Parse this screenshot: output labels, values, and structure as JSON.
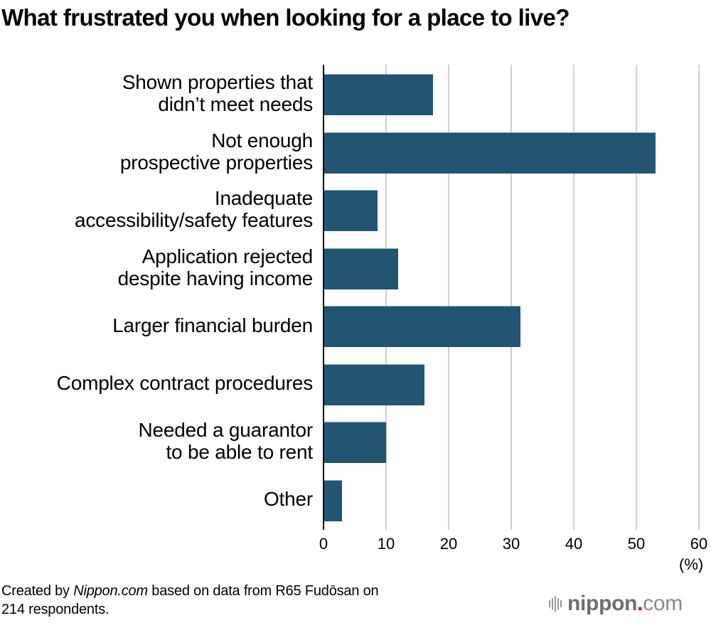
{
  "title": "What frustrated you when looking for a place to live?",
  "chart_data": {
    "type": "bar",
    "orientation": "horizontal",
    "title": "What frustrated you when looking for a place to live?",
    "categories": [
      "Shown properties that didn’t meet needs",
      "Not enough prospective properties",
      "Inadequate accessibility/safety features",
      "Application rejected despite having income",
      "Larger financial burden",
      "Complex contract procedures",
      "Needed a guarantor to be able to rent",
      "Other"
    ],
    "values": [
      17.4,
      53.0,
      8.5,
      11.8,
      31.4,
      16.0,
      9.9,
      2.8
    ],
    "xlabel": "(%)",
    "ylabel": "",
    "xlim": [
      0,
      60
    ],
    "xticks": [
      0,
      10,
      20,
      30,
      40,
      50,
      60
    ],
    "grid": "vertical",
    "legend": null,
    "bar_color": "#235572"
  },
  "labels": [
    "Shown properties that\ndidn’t meet needs",
    "Not enough\nprospective properties",
    "Inadequate\naccessibility/safety features",
    "Application rejected\ndespite having income",
    "Larger financial burden",
    "Complex contract procedures",
    "Needed a guarantor\nto be able to rent",
    "Other"
  ],
  "ticks": [
    "0",
    "10",
    "20",
    "30",
    "40",
    "50",
    "60"
  ],
  "unit": "(%)",
  "source": {
    "prefix": "Created by ",
    "brand": "Nippon.com",
    "suffix": " based on data from R65 Fudōsan on",
    "line2": "214 respondents."
  },
  "logo": {
    "name": "nippon",
    "dot": ".",
    "tld": "com",
    "accent_color": "#e60012"
  }
}
